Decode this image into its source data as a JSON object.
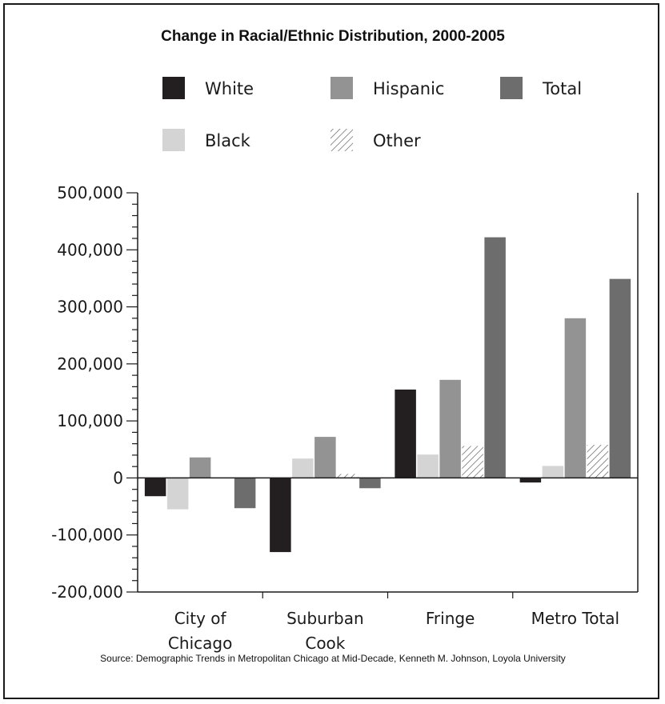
{
  "chart_data": {
    "type": "bar",
    "title": "Change in Racial/Ethnic Distribution, 2000-2005",
    "xlabel": "",
    "ylabel": "",
    "ylim": [
      -200000,
      500000
    ],
    "yticks": [
      -200000,
      -100000,
      0,
      100000,
      200000,
      300000,
      400000,
      500000
    ],
    "ytick_labels": [
      "-200,000",
      "-100,000",
      "0",
      "100,000",
      "200,000",
      "300,000",
      "400,000",
      "500,000"
    ],
    "categories": [
      [
        "City of",
        "Chicago"
      ],
      [
        "Suburban",
        "Cook"
      ],
      [
        "Fringe"
      ],
      [
        "Metro Total"
      ]
    ],
    "series": [
      {
        "name": "White",
        "values": [
          -32000,
          -130000,
          155000,
          -8000
        ]
      },
      {
        "name": "Black",
        "values": [
          -55000,
          34000,
          41000,
          21000
        ]
      },
      {
        "name": "Hispanic",
        "values": [
          36000,
          72000,
          172000,
          280000
        ]
      },
      {
        "name": "Other",
        "values": [
          0,
          7000,
          56000,
          58000
        ]
      },
      {
        "name": "Total",
        "values": [
          -53000,
          -18000,
          422000,
          349000
        ]
      }
    ],
    "legend": {
      "placement": "top",
      "order": [
        "White",
        "Hispanic",
        "Total",
        "Black",
        "Other"
      ]
    },
    "grid": false,
    "colors": {
      "White": "#231f20",
      "Black": "#d4d4d4",
      "Hispanic": "#939393",
      "Other": "hatched",
      "Total": "#6d6d6d"
    }
  },
  "source": "Source: Demographic Trends in Metropolitan Chicago at Mid-Decade, Kenneth M. Johnson, Loyola University"
}
